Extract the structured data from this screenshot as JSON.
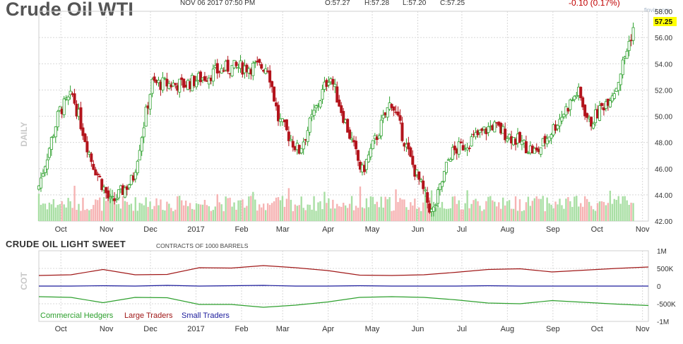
{
  "header": {
    "title": "Crude Oil WTI",
    "date": "NOV 06 2017 07:50 PM",
    "open": "O:57.27",
    "high": "H:57.28",
    "low": "L:57.20",
    "close": "C:57.25",
    "change": "-0.10 (0.17%)",
    "brand": "finviz.com"
  },
  "panel_label": "DAILY",
  "price_tag": "57.25",
  "cot": {
    "title": "CRUDE OIL LIGHT SWEET",
    "note": "CONTRACTS OF 1000 BARRELS",
    "panel_label": "COT",
    "legend": [
      "Commercial Hedgers",
      "Large Traders",
      "Small Traders"
    ]
  },
  "colors": {
    "up": "#2ea02e",
    "down": "#b3141c",
    "vol_up": "#a9dfa4",
    "vol_down": "#f6b3b3",
    "commercial": "#2ea02e",
    "large": "#a01818",
    "small": "#1c1c9c",
    "tag_bg": "#ffff00",
    "grid": "#d8d8d8"
  },
  "chart_data": [
    {
      "type": "candlestick",
      "title": "Crude Oil WTI",
      "ylim": [
        42,
        58
      ],
      "y_ticks": [
        "42.00",
        "44.00",
        "46.00",
        "48.00",
        "50.00",
        "52.00",
        "54.00",
        "56.00",
        "58.00"
      ],
      "x_ticks": [
        "Oct",
        "Nov",
        "Dec",
        "2017",
        "Feb",
        "Mar",
        "Apr",
        "May",
        "Jun",
        "Jul",
        "Aug",
        "Sep",
        "Oct",
        "Nov"
      ],
      "grid": true,
      "series": [
        {
          "name": "Close",
          "x": [
            "2016-09-26",
            "2016-10-10",
            "2016-10-19",
            "2016-11-01",
            "2016-11-14",
            "2016-11-29",
            "2016-12-12",
            "2017-01-03",
            "2017-02-01",
            "2017-03-01",
            "2017-03-08",
            "2017-03-22",
            "2017-04-12",
            "2017-05-04",
            "2017-05-24",
            "2017-06-06",
            "2017-06-21",
            "2017-07-03",
            "2017-08-01",
            "2017-08-31",
            "2017-09-28",
            "2017-10-06",
            "2017-10-24",
            "2017-11-06"
          ],
          "values": [
            44.7,
            50.4,
            51.6,
            46.6,
            43.3,
            45.2,
            52.5,
            52.4,
            53.7,
            53.8,
            49.8,
            47.3,
            53.2,
            45.7,
            51.2,
            46.7,
            42.5,
            47.1,
            49.3,
            47.2,
            51.9,
            49.4,
            52.2,
            57.25
          ]
        }
      ],
      "volume_relative": "low"
    },
    {
      "type": "line",
      "title": "CRUDE OIL LIGHT SWEET",
      "ylim": [
        -1000,
        1000
      ],
      "y_ticks": [
        "1M",
        "500K",
        "0",
        "-500K",
        "-1M"
      ],
      "x_ticks": [
        "Oct",
        "Nov",
        "Dec",
        "2017",
        "Feb",
        "Mar",
        "Apr",
        "May",
        "Jun",
        "Jul",
        "Aug",
        "Sep",
        "Oct",
        "Nov"
      ],
      "series": [
        {
          "name": "Large Traders",
          "values": [
            300,
            320,
            470,
            320,
            330,
            520,
            510,
            580,
            520,
            440,
            310,
            300,
            320,
            390,
            470,
            490,
            400,
            450,
            500,
            540
          ]
        },
        {
          "name": "Small Traders",
          "values": [
            0,
            0,
            10,
            0,
            20,
            0,
            10,
            20,
            0,
            0,
            10,
            0,
            0,
            0,
            10,
            0,
            0,
            0,
            0,
            0
          ]
        },
        {
          "name": "Commercial Hedgers",
          "values": [
            -300,
            -320,
            -470,
            -320,
            -330,
            -520,
            -520,
            -600,
            -540,
            -450,
            -320,
            -300,
            -320,
            -390,
            -480,
            -500,
            -410,
            -460,
            -510,
            -550
          ]
        }
      ]
    }
  ]
}
